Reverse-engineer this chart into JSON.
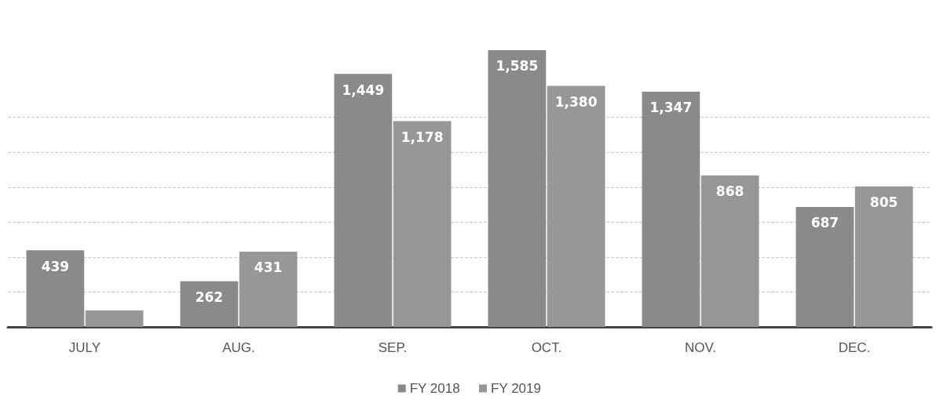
{
  "chart_data": {
    "type": "bar",
    "categories": [
      "JULY",
      "AUG.",
      "SEP.",
      "OCT.",
      "NOV.",
      "DEC."
    ],
    "series": [
      {
        "name": "FY 2018",
        "color": "#8a8a8a",
        "values": [
          439,
          262,
          1449,
          1585,
          1347,
          687
        ],
        "value_labels": [
          "439",
          "262",
          "1,449",
          "1,585",
          "1,347",
          "687"
        ]
      },
      {
        "name": "FY 2019",
        "color": "#979797",
        "values": [
          94,
          431,
          1178,
          1380,
          868,
          805
        ],
        "value_labels": [
          null,
          "431",
          "1,178",
          "1,380",
          "868",
          "805"
        ]
      }
    ],
    "yticks": [
      {
        "value": 0,
        "label": null
      },
      {
        "value": 200,
        "label": null
      },
      {
        "value": 400,
        "label": null
      },
      {
        "value": 600,
        "label": null
      },
      {
        "value": 800,
        "label": null
      },
      {
        "value": 1000,
        "label": null
      },
      {
        "value": 1200,
        "label": null
      }
    ],
    "tick_labels": "x",
    "grid": "y",
    "legend": "bottom"
  }
}
